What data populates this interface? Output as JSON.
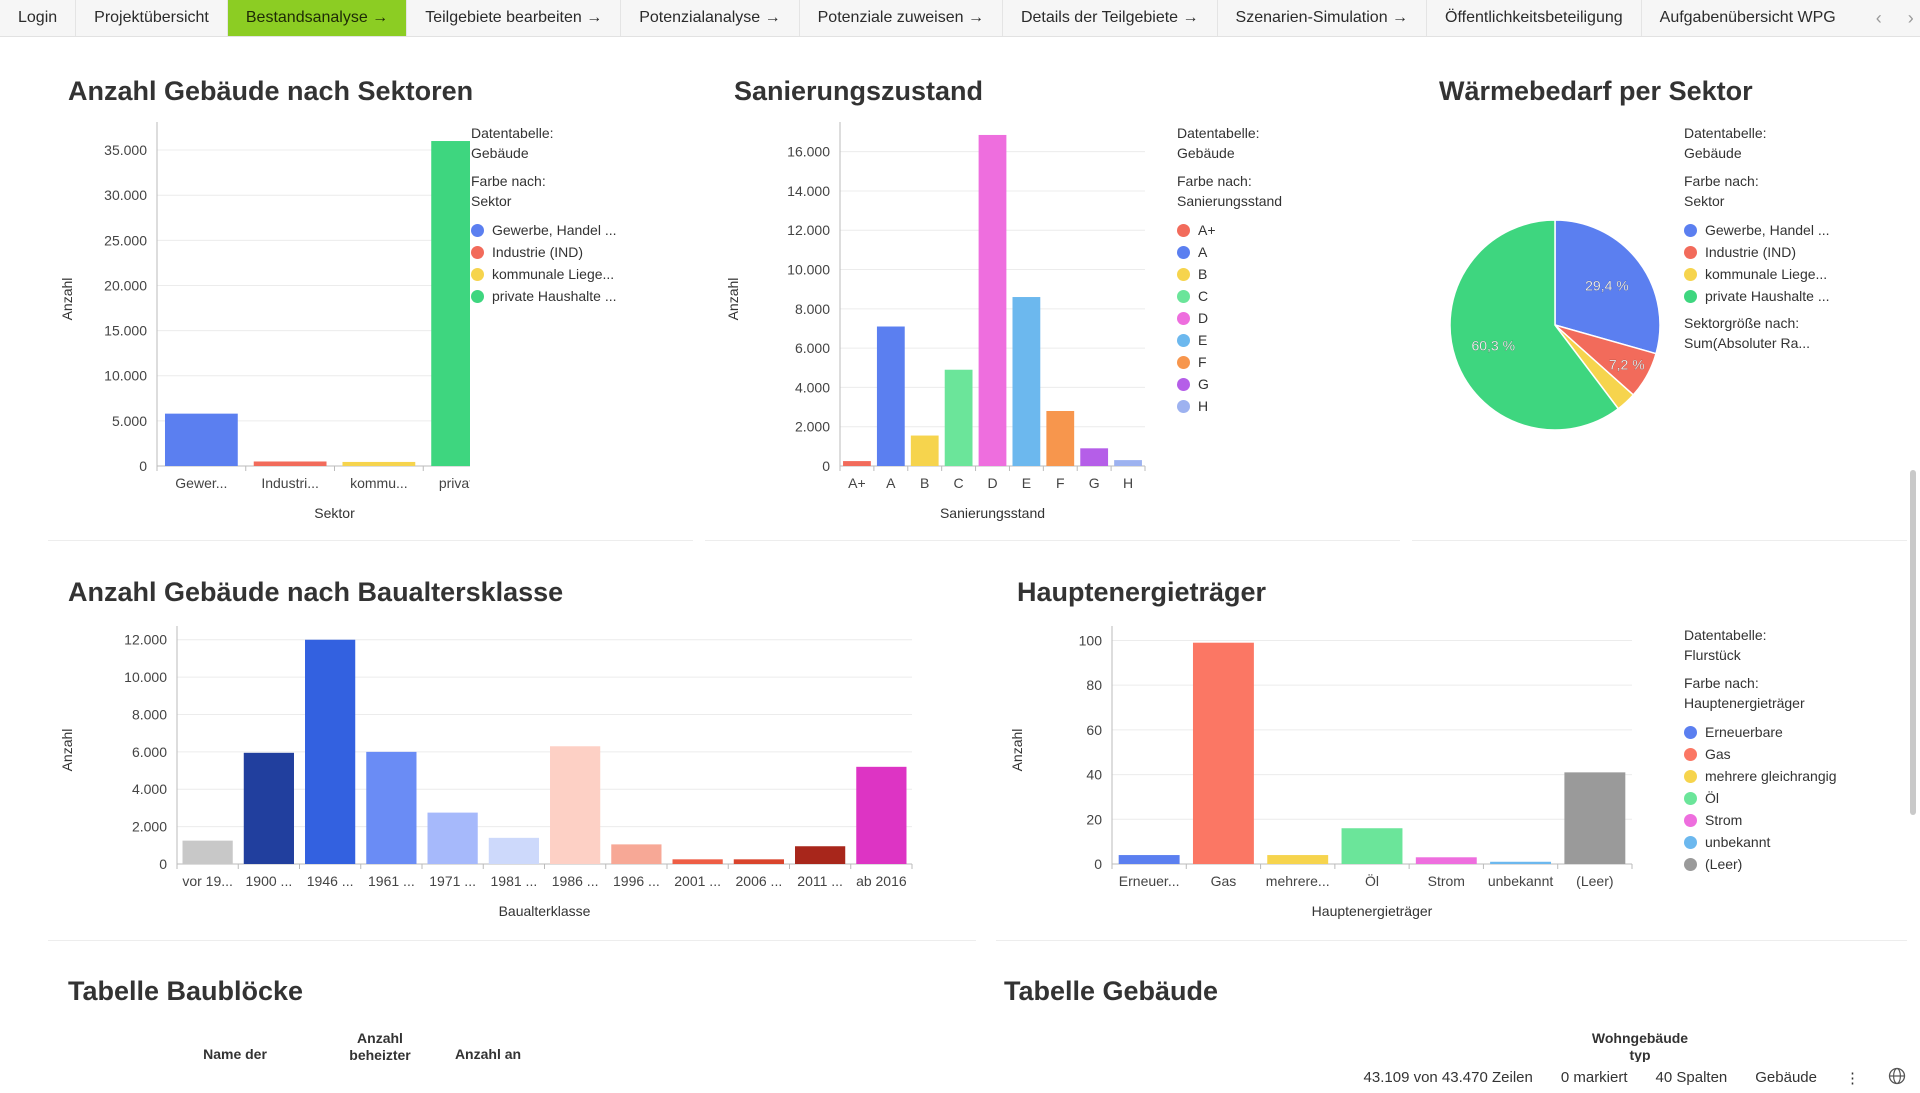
{
  "tabs": [
    {
      "label": "Login"
    },
    {
      "label": "Projektübersicht"
    },
    {
      "label": "Bestandsanalyse →",
      "active": true
    },
    {
      "label": "Teilgebiete bearbeiten →"
    },
    {
      "label": "Potenzialanalyse →"
    },
    {
      "label": "Potenziale zuweisen →"
    },
    {
      "label": "Details der Teilgebiete →"
    },
    {
      "label": "Szenarien-Simulation →"
    },
    {
      "label": "Öffentlichkeitsbeteiligung"
    },
    {
      "label": "Aufgabenübersicht WPG"
    }
  ],
  "tab_nav": {
    "prev": "‹",
    "next": "›",
    "up": "⌃"
  },
  "chart_data": [
    {
      "id": "sektoren",
      "type": "bar",
      "title": "Anzahl Gebäude nach Sektoren",
      "xlabel": "Sektor",
      "ylabel": "Anzahl",
      "ylim": [
        0,
        37000
      ],
      "yticks": [
        0,
        5000,
        10000,
        15000,
        20000,
        25000,
        30000,
        35000
      ],
      "ytick_labels": [
        "0",
        "5.000",
        "10.000",
        "15.000",
        "20.000",
        "25.000",
        "30.000",
        "35.000"
      ],
      "categories": [
        "Gewer...",
        "Industri...",
        "kommu...",
        "private ..."
      ],
      "values": [
        5800,
        500,
        450,
        36000
      ],
      "colors": [
        "#5b7ff0",
        "#f26b5b",
        "#f6d44d",
        "#3ed67f"
      ],
      "legend": {
        "table_label": "Datentabelle:",
        "table_value": "Gebäude",
        "color_label": "Farbe nach:",
        "color_value": "Sektor",
        "items": [
          {
            "name": "Gewerbe, Handel ...",
            "color": "#5b7ff0"
          },
          {
            "name": "Industrie (IND)",
            "color": "#f26b5b"
          },
          {
            "name": "kommunale Liege...",
            "color": "#f6d44d"
          },
          {
            "name": "private Haushalte ...",
            "color": "#3ed67f"
          }
        ]
      }
    },
    {
      "id": "sanierung",
      "type": "bar",
      "title": "Sanierungszustand",
      "xlabel": "Sanierungsstand",
      "ylabel": "Anzahl",
      "ylim": [
        0,
        17000
      ],
      "yticks": [
        0,
        2000,
        4000,
        6000,
        8000,
        10000,
        12000,
        14000,
        16000
      ],
      "ytick_labels": [
        "0",
        "2.000",
        "4.000",
        "6.000",
        "8.000",
        "10.000",
        "12.000",
        "14.000",
        "16.000"
      ],
      "categories": [
        "A+",
        "A",
        "B",
        "C",
        "D",
        "E",
        "F",
        "G",
        "H"
      ],
      "values": [
        250,
        7100,
        1550,
        4900,
        16850,
        8600,
        2800,
        900,
        300
      ],
      "colors": [
        "#f26b5b",
        "#5b7ff0",
        "#f6d44d",
        "#6be59a",
        "#ee6ede",
        "#6cb8ee",
        "#f7964d",
        "#b55ee8",
        "#9db2f0"
      ],
      "legend": {
        "table_label": "Datentabelle:",
        "table_value": "Gebäude",
        "color_label": "Farbe nach:",
        "color_value": "Sanierungsstand",
        "items": [
          {
            "name": "A+",
            "color": "#f26b5b"
          },
          {
            "name": "A",
            "color": "#5b7ff0"
          },
          {
            "name": "B",
            "color": "#f6d44d"
          },
          {
            "name": "C",
            "color": "#6be59a"
          },
          {
            "name": "D",
            "color": "#ee6ede"
          },
          {
            "name": "E",
            "color": "#6cb8ee"
          },
          {
            "name": "F",
            "color": "#f7964d"
          },
          {
            "name": "G",
            "color": "#b55ee8"
          },
          {
            "name": "H",
            "color": "#9db2f0"
          }
        ]
      }
    },
    {
      "id": "waermebedarf",
      "type": "pie",
      "title": "Wärmebedarf per Sektor",
      "categories": [
        "Gewerbe, Handel ...",
        "Industrie (IND)",
        "kommunale Liege...",
        "private Haushalte ..."
      ],
      "values": [
        29.4,
        7.2,
        3.1,
        60.3
      ],
      "data_labels": [
        "29,4 %",
        "7,2 %",
        "",
        "60,3 %"
      ],
      "colors": [
        "#5b7ff0",
        "#f26b5b",
        "#f6d44d",
        "#3ed67f"
      ],
      "legend": {
        "table_label": "Datentabelle:",
        "table_value": "Gebäude",
        "color_label": "Farbe nach:",
        "color_value": "Sektor",
        "items": [
          {
            "name": "Gewerbe, Handel ...",
            "color": "#5b7ff0"
          },
          {
            "name": "Industrie (IND)",
            "color": "#f26b5b"
          },
          {
            "name": "kommunale Liege...",
            "color": "#f6d44d"
          },
          {
            "name": "private Haushalte ...",
            "color": "#3ed67f"
          }
        ],
        "size_label": "Sektorgröße nach:",
        "size_value": "Sum(Absoluter Ra..."
      }
    },
    {
      "id": "baualter",
      "type": "bar",
      "title": "Anzahl Gebäude nach Baualtersklasse",
      "xlabel": "Baualterklasse",
      "ylabel": "Anzahl",
      "ylim": [
        0,
        12200
      ],
      "yticks": [
        0,
        2000,
        4000,
        6000,
        8000,
        10000,
        12000
      ],
      "ytick_labels": [
        "0",
        "2.000",
        "4.000",
        "6.000",
        "8.000",
        "10.000",
        "12.000"
      ],
      "categories": [
        "vor 19...",
        "1900 ...",
        "1946 ...",
        "1961 ...",
        "1971 ...",
        "1981 ...",
        "1986 ...",
        "1996 ...",
        "2001 ...",
        "2006 ...",
        "2011 ...",
        "ab 2016"
      ],
      "values": [
        1250,
        5950,
        12000,
        6000,
        2750,
        1400,
        6300,
        1050,
        250,
        250,
        950,
        5200
      ],
      "colors": [
        "#c8c8c8",
        "#213f9e",
        "#3361e0",
        "#6a8cf5",
        "#a6b9fb",
        "#cdd9fb",
        "#fdd0c5",
        "#f7a896",
        "#ee5e45",
        "#d9442c",
        "#a8261b",
        "#dd34c4"
      ]
    },
    {
      "id": "energietraeger",
      "type": "bar",
      "title": "Hauptenergieträger",
      "xlabel": "Hauptenergieträger",
      "ylabel": "Anzahl",
      "ylim": [
        0,
        102
      ],
      "yticks": [
        0,
        20,
        40,
        60,
        80,
        100
      ],
      "ytick_labels": [
        "0",
        "20",
        "40",
        "60",
        "80",
        "100"
      ],
      "categories": [
        "Erneuer...",
        "Gas",
        "mehrere...",
        "Öl",
        "Strom",
        "unbekannt",
        "(Leer)"
      ],
      "values": [
        4,
        99,
        4,
        16,
        3,
        1,
        41
      ],
      "colors": [
        "#5b7ff0",
        "#fb7764",
        "#f6d44d",
        "#6be59a",
        "#ee6ede",
        "#6cb8ee",
        "#9a9a9a"
      ],
      "legend": {
        "table_label": "Datentabelle:",
        "table_value": "Flurstück",
        "color_label": "Farbe nach:",
        "color_value": "Hauptenergieträger",
        "items": [
          {
            "name": "Erneuerbare",
            "color": "#5b7ff0"
          },
          {
            "name": "Gas",
            "color": "#fb7764"
          },
          {
            "name": "mehrere gleichrangig",
            "color": "#f6d44d"
          },
          {
            "name": "Öl",
            "color": "#6be59a"
          },
          {
            "name": "Strom",
            "color": "#ee6ede"
          },
          {
            "name": "unbekannt",
            "color": "#6cb8ee"
          },
          {
            "name": "(Leer)",
            "color": "#9a9a9a"
          }
        ]
      }
    }
  ],
  "tables": {
    "bloecke": {
      "title": "Tabelle Baublöcke",
      "headers": [
        "Name der",
        "Anzahl beheizter",
        "Anzahl an"
      ]
    },
    "gebaeude": {
      "title": "Tabelle Gebäude",
      "headers": [
        "Wohngebäude typ"
      ]
    }
  },
  "status": {
    "rows": "43.109 von 43.470 Zeilen",
    "marked": "0 markiert",
    "columns": "40 Spalten",
    "table": "Gebäude",
    "more_icon": "⋮",
    "globe_icon": "globe-icon"
  }
}
